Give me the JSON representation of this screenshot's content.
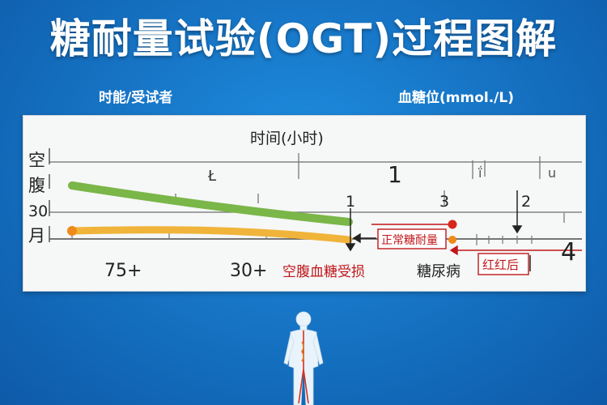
{
  "header": {
    "title": "糖耐量试验(OGT)过程图解",
    "left_label": "时能/受试者",
    "right_label": "血糖位(mmol./L)"
  },
  "chart": {
    "axis_title": "时间(小时)",
    "y_labels": [
      "空",
      "腹",
      "30",
      "月"
    ],
    "top_markers": [
      "Ł",
      "1",
      "ḯ",
      "u"
    ],
    "mid_markers": [
      "1",
      "3",
      "2"
    ],
    "right_marker": "4",
    "bottom_labels": [
      "75+",
      "30+",
      "空腹血糖受损",
      "糖尿病"
    ],
    "legend_normal": "正常糖耐量",
    "legend_after": "红红后",
    "colors": {
      "green_curve": "#7ab648",
      "orange_curve": "#f0a02a",
      "red_marker": "#d8281e",
      "orange_marker": "#ee8a1a",
      "red_text": "#c0161a"
    }
  },
  "chart_data": {
    "type": "line",
    "title": "",
    "xlabel": "时间(小时)",
    "ylabel": "",
    "series": [
      {
        "color": "green",
        "points": [
          [
            0,
            9.0
          ],
          [
            1.8,
            4.0
          ]
        ]
      },
      {
        "color": "orange",
        "points": [
          [
            0,
            3.0
          ],
          [
            1.8,
            1.0
          ]
        ]
      }
    ],
    "markers": [
      {
        "x": 2.3,
        "y": 3.4,
        "color": "red"
      },
      {
        "x": 2.3,
        "y": 1.2,
        "color": "orange"
      }
    ]
  },
  "figure": {
    "icon": "human-body-icon"
  }
}
